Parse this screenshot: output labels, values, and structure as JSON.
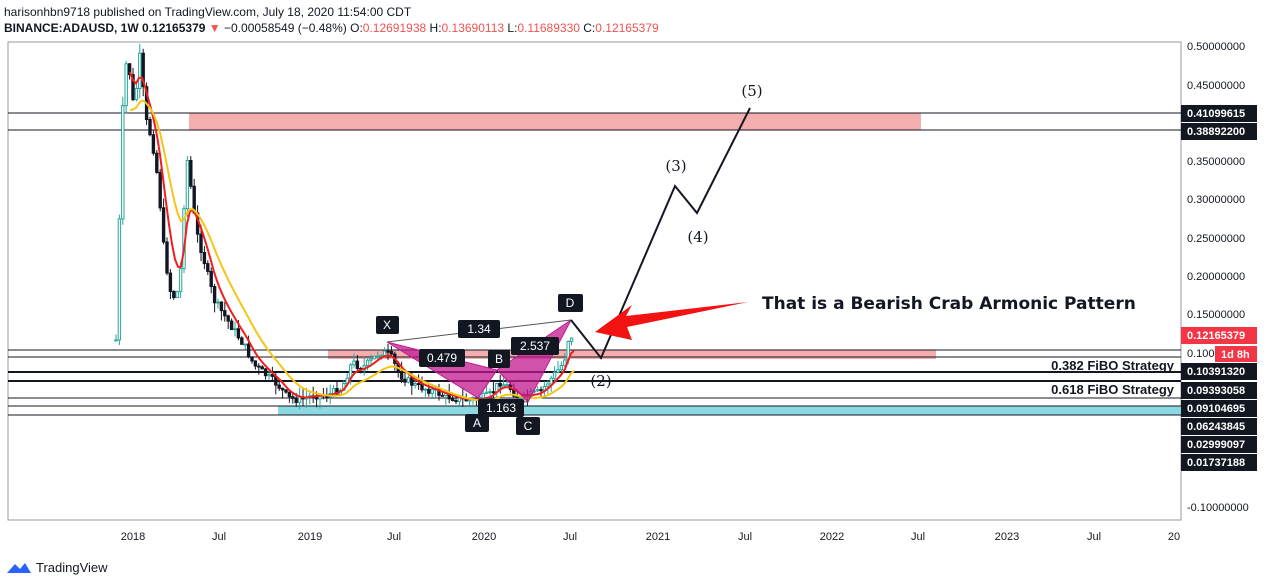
{
  "header": {
    "publisher_line": "harisonhbn9718 published on TradingView.com, July 18, 2020 11:54:00 CDT",
    "symbol": "BINANCE:ADAUSD, 1W",
    "last": "0.12165379",
    "change": "−0.00058549 (−0.48%)",
    "o_label": "O:",
    "o": "0.12691938",
    "h_label": "H:",
    "h": "0.13690113",
    "l_label": "L:",
    "l": "0.11689330",
    "c_label": "C:",
    "c": "0.12165379"
  },
  "footer": {
    "brand": "TradingView"
  },
  "chart_data": {
    "type": "line",
    "symbol": "BINANCE:ADAUSD",
    "interval": "1W",
    "y_ticks": [
      "0.50000000",
      "0.45000000",
      "0.35000000",
      "0.30000000",
      "0.25000000",
      "0.20000000",
      "0.15000000",
      "0.10000000",
      "-0.10000000"
    ],
    "price_labels": [
      {
        "value": "0.41099615",
        "style": "dark"
      },
      {
        "value": "0.38892200",
        "style": "dark"
      },
      {
        "value": "0.12165379",
        "style": "red"
      },
      {
        "value": "1d 8h",
        "style": "red"
      },
      {
        "value": "0.10391320",
        "style": "dark"
      },
      {
        "value": "0.09393058",
        "style": "dark"
      },
      {
        "value": "0.09104695",
        "style": "dark"
      },
      {
        "value": "0.06243845",
        "style": "dark"
      },
      {
        "value": "0.02999097",
        "style": "dark"
      },
      {
        "value": "0.01737188",
        "style": "dark"
      }
    ],
    "x_ticks": [
      "2018",
      "Jul",
      "2019",
      "Jul",
      "2020",
      "Jul",
      "2021",
      "Jul",
      "2022",
      "Jul",
      "2023",
      "Jul",
      "20"
    ],
    "series": [
      {
        "type": "candlestick",
        "color_up": "#26a69a",
        "color_down": "#131722"
      },
      {
        "type": "ema",
        "color": "#ef1f1f"
      },
      {
        "type": "ema",
        "color": "#f5c518"
      }
    ],
    "harmonic_pattern": {
      "points": [
        "X",
        "A",
        "B",
        "C",
        "D"
      ],
      "ratios": [
        "1.34",
        "0.479",
        "2.537",
        "1.163"
      ],
      "fill_color": "#c2188f"
    },
    "zones": [
      {
        "top": 0.41099615,
        "bottom": 0.388922,
        "color": "#f4a5a5"
      },
      {
        "top": 0.1039132,
        "bottom": 0.09393058,
        "color": "#f4a5a5"
      },
      {
        "top": 0.09104695,
        "bottom": 0.06243845,
        "color": "#7ed6e0"
      }
    ],
    "fib_labels": [
      "0.382 FiBO Strategy",
      "0.618 FiBO Strategy"
    ],
    "wave_labels": [
      "(2)",
      "(3)",
      "(4)",
      "(5)"
    ],
    "annotation": "That is a Bearish Crab Armonic Pattern",
    "colors": {
      "arrow": "#f21212",
      "harmonic": "#c2188f",
      "zone_red": "#f4a5a5",
      "zone_cyan": "#7ed6e0",
      "label_bg": "#131722",
      "current_price_bg": "#f23645"
    }
  }
}
